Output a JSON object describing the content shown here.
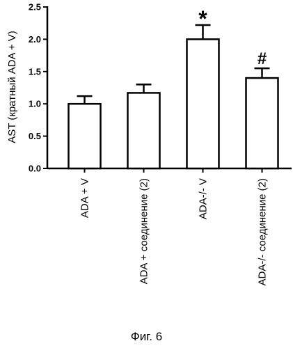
{
  "figure": {
    "caption": "Фиг. 6"
  },
  "chart_data": {
    "type": "bar",
    "ylabel": "AST (кратный ADA + V)",
    "xlabel": "",
    "ylim": [
      0,
      2.5
    ],
    "yticks": [
      "0.0",
      "0.5",
      "1.0",
      "1.5",
      "2.0",
      "2.5"
    ],
    "categories": [
      "ADA + V",
      "ADA + соединение (2)",
      "ADA-/- V",
      "ADA-/- соединение (2)"
    ],
    "values": [
      1.0,
      1.17,
      2.0,
      1.4
    ],
    "error_upper": [
      0.12,
      0.13,
      0.22,
      0.15
    ],
    "annotations": [
      "",
      "",
      "*",
      "#"
    ],
    "grid": false,
    "bar_fill": "#ffffff",
    "bar_stroke": "#000000"
  }
}
